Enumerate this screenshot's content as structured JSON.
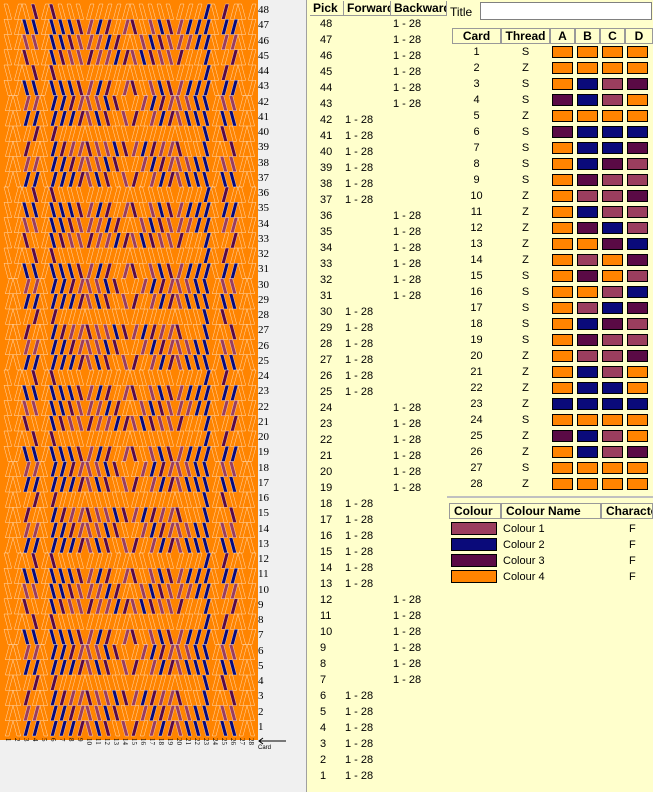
{
  "pattern": {
    "picks_top_to_bottom": [
      48,
      47,
      46,
      45,
      44,
      43,
      42,
      41,
      40,
      39,
      38,
      37,
      36,
      35,
      34,
      33,
      32,
      31,
      30,
      29,
      28,
      27,
      26,
      25,
      24,
      23,
      22,
      21,
      20,
      19,
      18,
      17,
      16,
      15,
      14,
      13,
      12,
      11,
      10,
      9,
      8,
      7,
      6,
      5,
      4,
      3,
      2,
      1
    ],
    "card_numbers": [
      "1",
      "2",
      "3",
      "4",
      "5",
      "6",
      "7",
      "8",
      "9",
      "10",
      "11",
      "12",
      "13",
      "14",
      "15",
      "16",
      "17",
      "18",
      "19",
      "20",
      "21",
      "22",
      "23",
      "24",
      "25",
      "26",
      "27",
      "28"
    ],
    "card_label": "Card"
  },
  "pick_table": {
    "headers": {
      "pick": "Pick",
      "forward": "Forward",
      "backward": "Backward"
    },
    "rows": [
      {
        "pick": "48",
        "forward": "",
        "backward": "1 - 28"
      },
      {
        "pick": "47",
        "forward": "",
        "backward": "1 - 28"
      },
      {
        "pick": "46",
        "forward": "",
        "backward": "1 - 28"
      },
      {
        "pick": "45",
        "forward": "",
        "backward": "1 - 28"
      },
      {
        "pick": "44",
        "forward": "",
        "backward": "1 - 28"
      },
      {
        "pick": "43",
        "forward": "",
        "backward": "1 - 28"
      },
      {
        "pick": "42",
        "forward": "1 - 28",
        "backward": ""
      },
      {
        "pick": "41",
        "forward": "1 - 28",
        "backward": ""
      },
      {
        "pick": "40",
        "forward": "1 - 28",
        "backward": ""
      },
      {
        "pick": "39",
        "forward": "1 - 28",
        "backward": ""
      },
      {
        "pick": "38",
        "forward": "1 - 28",
        "backward": ""
      },
      {
        "pick": "37",
        "forward": "1 - 28",
        "backward": ""
      },
      {
        "pick": "36",
        "forward": "",
        "backward": "1 - 28"
      },
      {
        "pick": "35",
        "forward": "",
        "backward": "1 - 28"
      },
      {
        "pick": "34",
        "forward": "",
        "backward": "1 - 28"
      },
      {
        "pick": "33",
        "forward": "",
        "backward": "1 - 28"
      },
      {
        "pick": "32",
        "forward": "",
        "backward": "1 - 28"
      },
      {
        "pick": "31",
        "forward": "",
        "backward": "1 - 28"
      },
      {
        "pick": "30",
        "forward": "1 - 28",
        "backward": ""
      },
      {
        "pick": "29",
        "forward": "1 - 28",
        "backward": ""
      },
      {
        "pick": "28",
        "forward": "1 - 28",
        "backward": ""
      },
      {
        "pick": "27",
        "forward": "1 - 28",
        "backward": ""
      },
      {
        "pick": "26",
        "forward": "1 - 28",
        "backward": ""
      },
      {
        "pick": "25",
        "forward": "1 - 28",
        "backward": ""
      },
      {
        "pick": "24",
        "forward": "",
        "backward": "1 - 28"
      },
      {
        "pick": "23",
        "forward": "",
        "backward": "1 - 28"
      },
      {
        "pick": "22",
        "forward": "",
        "backward": "1 - 28"
      },
      {
        "pick": "21",
        "forward": "",
        "backward": "1 - 28"
      },
      {
        "pick": "20",
        "forward": "",
        "backward": "1 - 28"
      },
      {
        "pick": "19",
        "forward": "",
        "backward": "1 - 28"
      },
      {
        "pick": "18",
        "forward": "1 - 28",
        "backward": ""
      },
      {
        "pick": "17",
        "forward": "1 - 28",
        "backward": ""
      },
      {
        "pick": "16",
        "forward": "1 - 28",
        "backward": ""
      },
      {
        "pick": "15",
        "forward": "1 - 28",
        "backward": ""
      },
      {
        "pick": "14",
        "forward": "1 - 28",
        "backward": ""
      },
      {
        "pick": "13",
        "forward": "1 - 28",
        "backward": ""
      },
      {
        "pick": "12",
        "forward": "",
        "backward": "1 - 28"
      },
      {
        "pick": "11",
        "forward": "",
        "backward": "1 - 28"
      },
      {
        "pick": "10",
        "forward": "",
        "backward": "1 - 28"
      },
      {
        "pick": "9",
        "forward": "",
        "backward": "1 - 28"
      },
      {
        "pick": "8",
        "forward": "",
        "backward": "1 - 28"
      },
      {
        "pick": "7",
        "forward": "",
        "backward": "1 - 28"
      },
      {
        "pick": "6",
        "forward": "1 - 28",
        "backward": ""
      },
      {
        "pick": "5",
        "forward": "1 - 28",
        "backward": ""
      },
      {
        "pick": "4",
        "forward": "1 - 28",
        "backward": ""
      },
      {
        "pick": "3",
        "forward": "1 - 28",
        "backward": ""
      },
      {
        "pick": "2",
        "forward": "1 - 28",
        "backward": ""
      },
      {
        "pick": "1",
        "forward": "1 - 28",
        "backward": ""
      }
    ]
  },
  "title_field": {
    "label": "Title",
    "value": ""
  },
  "card_table": {
    "headers": {
      "card": "Card",
      "thread": "Thread",
      "a": "A",
      "b": "B",
      "c": "C",
      "d": "D"
    },
    "rows": [
      {
        "card": "1",
        "thread": "S",
        "holes": [
          4,
          4,
          4,
          4
        ]
      },
      {
        "card": "2",
        "thread": "Z",
        "holes": [
          4,
          4,
          4,
          4
        ]
      },
      {
        "card": "3",
        "thread": "S",
        "holes": [
          4,
          2,
          1,
          3
        ]
      },
      {
        "card": "4",
        "thread": "S",
        "holes": [
          3,
          2,
          1,
          4
        ]
      },
      {
        "card": "5",
        "thread": "Z",
        "holes": [
          4,
          4,
          4,
          4
        ]
      },
      {
        "card": "6",
        "thread": "S",
        "holes": [
          3,
          2,
          2,
          2
        ]
      },
      {
        "card": "7",
        "thread": "S",
        "holes": [
          4,
          2,
          2,
          3
        ]
      },
      {
        "card": "8",
        "thread": "S",
        "holes": [
          4,
          2,
          3,
          1
        ]
      },
      {
        "card": "9",
        "thread": "S",
        "holes": [
          4,
          3,
          1,
          1
        ]
      },
      {
        "card": "10",
        "thread": "Z",
        "holes": [
          4,
          1,
          1,
          3
        ]
      },
      {
        "card": "11",
        "thread": "Z",
        "holes": [
          4,
          2,
          1,
          1
        ]
      },
      {
        "card": "12",
        "thread": "Z",
        "holes": [
          4,
          3,
          2,
          1
        ]
      },
      {
        "card": "13",
        "thread": "Z",
        "holes": [
          4,
          4,
          3,
          2
        ]
      },
      {
        "card": "14",
        "thread": "Z",
        "holes": [
          4,
          1,
          4,
          3
        ]
      },
      {
        "card": "15",
        "thread": "S",
        "holes": [
          4,
          3,
          4,
          1
        ]
      },
      {
        "card": "16",
        "thread": "S",
        "holes": [
          4,
          4,
          1,
          2
        ]
      },
      {
        "card": "17",
        "thread": "S",
        "holes": [
          4,
          1,
          2,
          3
        ]
      },
      {
        "card": "18",
        "thread": "S",
        "holes": [
          4,
          2,
          3,
          1
        ]
      },
      {
        "card": "19",
        "thread": "S",
        "holes": [
          4,
          3,
          1,
          1
        ]
      },
      {
        "card": "20",
        "thread": "Z",
        "holes": [
          4,
          1,
          1,
          3
        ]
      },
      {
        "card": "21",
        "thread": "Z",
        "holes": [
          4,
          2,
          1,
          4
        ]
      },
      {
        "card": "22",
        "thread": "Z",
        "holes": [
          4,
          2,
          2,
          4
        ]
      },
      {
        "card": "23",
        "thread": "Z",
        "holes": [
          2,
          2,
          2,
          2
        ]
      },
      {
        "card": "24",
        "thread": "S",
        "holes": [
          4,
          4,
          4,
          4
        ]
      },
      {
        "card": "25",
        "thread": "Z",
        "holes": [
          3,
          2,
          1,
          4
        ]
      },
      {
        "card": "26",
        "thread": "Z",
        "holes": [
          4,
          2,
          1,
          3
        ]
      },
      {
        "card": "27",
        "thread": "S",
        "holes": [
          4,
          4,
          4,
          4
        ]
      },
      {
        "card": "28",
        "thread": "Z",
        "holes": [
          4,
          4,
          4,
          4
        ]
      }
    ]
  },
  "colour_table": {
    "headers": {
      "colour": "Colour",
      "name": "Colour Name",
      "character": "Character"
    },
    "rows": [
      {
        "id": 1,
        "name": "Colour 1",
        "hex": "#9b3e5e",
        "character": "F"
      },
      {
        "id": 2,
        "name": "Colour 2",
        "hex": "#0a0a7a",
        "character": "F"
      },
      {
        "id": 3,
        "name": "Colour 3",
        "hex": "#5a0a45",
        "character": "F"
      },
      {
        "id": 4,
        "name": "Colour 4",
        "hex": "#ff8400",
        "character": "F"
      }
    ]
  },
  "colors": {
    "orange": "#ff8400",
    "navy": "#0a0a7a",
    "plum": "#5a0a45",
    "rose": "#9b3e5e",
    "table_bg": "#ffffcc"
  }
}
